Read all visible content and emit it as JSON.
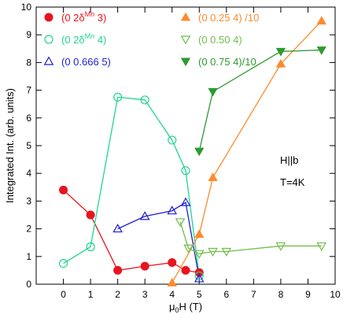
{
  "chart_data": {
    "type": "line",
    "xlabel_main": "μ",
    "xlabel_sub": "0",
    "xlabel_rest": "H (T)",
    "ylabel": "Integrated Int. (arb. units)",
    "xlim": [
      -1,
      10
    ],
    "ylim": [
      0,
      10
    ],
    "xticks": [
      0,
      1,
      2,
      3,
      4,
      5,
      6,
      7,
      8,
      9,
      10
    ],
    "yticks": [
      0,
      1,
      2,
      3,
      4,
      5,
      6,
      7,
      8,
      9,
      10
    ],
    "grid": false,
    "legend_position": "top",
    "annotations": [
      "H||b",
      "T=4K"
    ],
    "series": [
      {
        "name_pre": "(0 2δ",
        "name_sup": "Mn",
        "name_post": " 3)",
        "color": "#e8141e",
        "marker": "circle-filled",
        "x": [
          0,
          1,
          2,
          3,
          4,
          4.5,
          5
        ],
        "y": [
          3.4,
          2.5,
          0.5,
          0.65,
          0.78,
          0.5,
          0.42
        ]
      },
      {
        "name_pre": "(0 2δ",
        "name_sup": "Mn",
        "name_post": " 4)",
        "color": "#1fd68f",
        "marker": "circle-open",
        "x": [
          0,
          1,
          2,
          3,
          4,
          4.5,
          5
        ],
        "y": [
          0.75,
          1.35,
          6.75,
          6.65,
          5.2,
          4.1,
          0.3
        ]
      },
      {
        "name_pre": "(0 0.666 5)",
        "name_sup": "",
        "name_post": "",
        "color": "#1f1fd6",
        "marker": "triangle-up-open",
        "x": [
          2,
          3,
          4,
          4.5,
          5
        ],
        "y": [
          2.0,
          2.45,
          2.65,
          2.95,
          0.2
        ]
      },
      {
        "name_pre": "(0 0.25 4) /10",
        "name_sup": "",
        "name_post": "",
        "color": "#ff8a2b",
        "marker": "triangle-up-filled",
        "x": [
          4,
          5,
          5.5,
          8,
          9.5
        ],
        "y": [
          0.05,
          1.8,
          3.85,
          7.95,
          9.5
        ]
      },
      {
        "name_pre": "(0 0.50 4)",
        "name_sup": "",
        "name_post": "",
        "color": "#6fbf4a",
        "marker": "triangle-down-open",
        "x": [
          4.3,
          4.6,
          5,
          5.5,
          6,
          8,
          9.5
        ],
        "y": [
          2.25,
          1.3,
          1.1,
          1.18,
          1.18,
          1.38,
          1.38
        ]
      },
      {
        "name_pre": "(0 0.75 4)/10",
        "name_sup": "",
        "name_post": "",
        "color": "#2e9a2e",
        "marker": "triangle-down-filled",
        "x": [
          5,
          5.5,
          8,
          9.5
        ],
        "y": [
          4.8,
          6.95,
          8.4,
          8.45
        ]
      }
    ]
  }
}
